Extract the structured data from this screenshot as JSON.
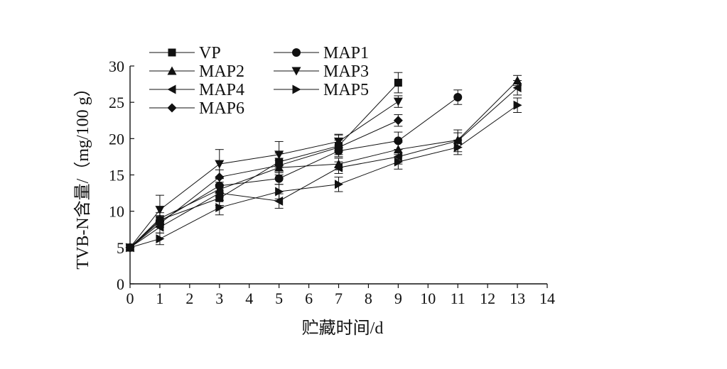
{
  "chart_data": {
    "type": "line",
    "title": "",
    "xlabel": "贮藏时间/d",
    "ylabel": "TVB-N含量/（mg/100 g）",
    "xlim": [
      0,
      14
    ],
    "ylim": [
      0,
      30
    ],
    "xticks": [
      0,
      1,
      2,
      3,
      4,
      5,
      6,
      7,
      8,
      9,
      10,
      11,
      12,
      13,
      14
    ],
    "yticks": [
      0,
      5,
      10,
      15,
      20,
      25,
      30
    ],
    "grid": false,
    "legend_position": "top-left",
    "color": "#111111",
    "series": [
      {
        "name": "VP",
        "marker": "square",
        "x": [
          0,
          1,
          3,
          5,
          7,
          9
        ],
        "y": [
          5.0,
          8.8,
          11.8,
          16.8,
          19.0,
          27.7
        ],
        "err": [
          0.3,
          0.6,
          1.0,
          1.2,
          1.5,
          1.4
        ]
      },
      {
        "name": "MAP1",
        "marker": "circle",
        "x": [
          0,
          1,
          3,
          5,
          7,
          9,
          11
        ],
        "y": [
          5.0,
          8.6,
          13.5,
          14.5,
          18.3,
          19.7,
          25.7
        ],
        "err": [
          0.3,
          0.6,
          1.0,
          0.8,
          0.8,
          1.2,
          1.0
        ]
      },
      {
        "name": "MAP2",
        "marker": "triangle-up",
        "x": [
          0,
          1,
          3,
          5,
          7,
          9,
          11,
          13
        ],
        "y": [
          5.0,
          9.0,
          13.0,
          16.0,
          16.5,
          18.5,
          19.8,
          28.0
        ],
        "err": [
          0.3,
          0.8,
          1.0,
          1.0,
          0.8,
          1.0,
          1.0,
          0.7
        ]
      },
      {
        "name": "MAP3",
        "marker": "triangle-down",
        "x": [
          0,
          1,
          3,
          5,
          7,
          9
        ],
        "y": [
          5.0,
          10.2,
          16.5,
          17.8,
          19.6,
          25.1
        ],
        "err": [
          0.3,
          2.0,
          2.0,
          1.8,
          1.0,
          0.8
        ]
      },
      {
        "name": "MAP4",
        "marker": "triangle-left",
        "x": [
          0,
          1,
          3,
          5,
          7,
          9,
          11,
          13
        ],
        "y": [
          5.0,
          7.8,
          12.5,
          11.4,
          16.0,
          17.5,
          19.7,
          27.0
        ],
        "err": [
          0.3,
          0.8,
          1.0,
          1.0,
          0.8,
          1.0,
          1.5,
          1.0
        ]
      },
      {
        "name": "MAP5",
        "marker": "triangle-right",
        "x": [
          0,
          1,
          3,
          5,
          7,
          9,
          11,
          13
        ],
        "y": [
          5.0,
          6.2,
          10.5,
          12.7,
          13.7,
          16.8,
          18.8,
          24.6
        ],
        "err": [
          0.3,
          0.8,
          1.0,
          1.0,
          1.0,
          1.0,
          1.0,
          1.0
        ]
      },
      {
        "name": "MAP6",
        "marker": "diamond",
        "x": [
          0,
          1,
          3,
          5,
          7,
          9
        ],
        "y": [
          5.0,
          8.3,
          14.7,
          16.3,
          18.8,
          22.5
        ],
        "err": [
          0.3,
          0.5,
          1.0,
          1.0,
          1.0,
          0.8
        ]
      }
    ]
  }
}
